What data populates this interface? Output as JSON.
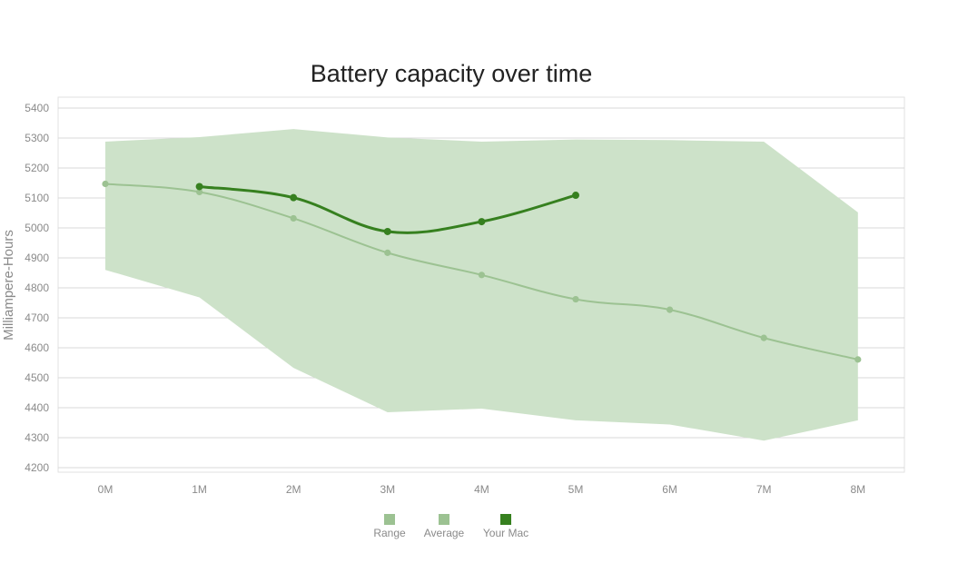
{
  "chart_data": {
    "type": "area",
    "title": "Battery capacity over time",
    "xlabel": "",
    "ylabel": "Milliampere-Hours",
    "categories": [
      "0M",
      "1M",
      "2M",
      "3M",
      "4M",
      "5M",
      "6M",
      "7M",
      "8M"
    ],
    "ylim": [
      4200,
      5400
    ],
    "yticks": [
      4200,
      4300,
      4400,
      4500,
      4600,
      4700,
      4800,
      4900,
      5000,
      5100,
      5200,
      5300,
      5400
    ],
    "grid": true,
    "legend_position": "bottom-center",
    "range": {
      "name": "Range",
      "upper": [
        5288,
        5303,
        5330,
        5302,
        5288,
        5295,
        5293,
        5288,
        5052
      ],
      "lower": [
        4860,
        4768,
        4533,
        4385,
        4397,
        4358,
        4344,
        4290,
        4358
      ]
    },
    "series": [
      {
        "name": "Average",
        "values": [
          5147,
          5120,
          5032,
          4917,
          4843,
          4762,
          4727,
          4633,
          4561
        ]
      },
      {
        "name": "Your Mac",
        "values": [
          null,
          5138,
          5101,
          4988,
          5021,
          5109,
          null,
          null,
          null
        ]
      }
    ],
    "colors": {
      "range": "#cde2c9",
      "range_legend": "#9cc292",
      "average": "#9cc292",
      "your_mac": "#36801f",
      "grid": "#d8d8d8",
      "frame": "#e2e2e2"
    }
  }
}
